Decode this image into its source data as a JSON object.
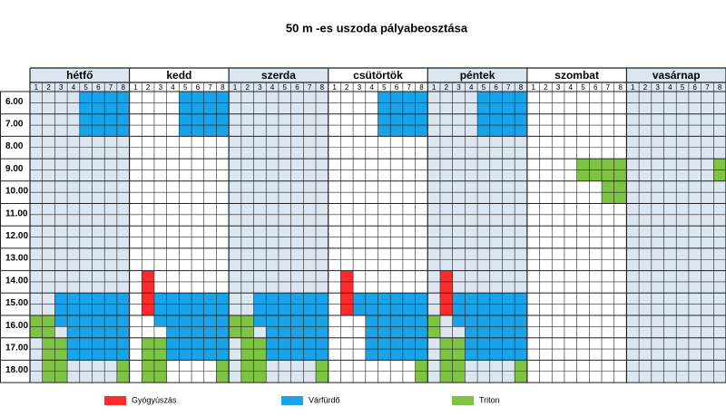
{
  "title": "50 m -es uszoda pályabeosztása",
  "days": [
    "hétfő",
    "kedd",
    "szerda",
    "csütörtök",
    "péntek",
    "szombat",
    "vasárnap"
  ],
  "lanes": [
    "1",
    "2",
    "3",
    "4",
    "5",
    "6",
    "7",
    "8"
  ],
  "times": [
    "6.00",
    "7.00",
    "8.00",
    "9.00",
    "10.00",
    "11.00",
    "12.00",
    "13.00",
    "14.00",
    "15.00",
    "16.00",
    "17.00",
    "18.00"
  ],
  "legend": [
    {
      "label": "Gyógyúszás",
      "color": "#ff2b2b"
    },
    {
      "label": "Várfürdő",
      "color": "#19a4ea"
    },
    {
      "label": "Triton",
      "color": "#7ec344"
    }
  ],
  "bookings": [
    {
      "day": 0,
      "lanes": [
        5,
        8
      ],
      "hours": [
        6,
        8
      ],
      "kind": 1
    },
    {
      "day": 0,
      "lanes": [
        3,
        8
      ],
      "hours": [
        15,
        16.5
      ],
      "kind": 1
    },
    {
      "day": 0,
      "lanes": [
        4,
        8
      ],
      "hours": [
        16.5,
        18
      ],
      "kind": 1
    },
    {
      "day": 0,
      "lanes": [
        1,
        2
      ],
      "hours": [
        16,
        17
      ],
      "kind": 2
    },
    {
      "day": 0,
      "lanes": [
        2,
        3
      ],
      "hours": [
        17,
        19
      ],
      "kind": 2
    },
    {
      "day": 0,
      "lanes": [
        8,
        8
      ],
      "hours": [
        18,
        19
      ],
      "kind": 2
    },
    {
      "day": 1,
      "lanes": [
        5,
        8
      ],
      "hours": [
        6,
        8
      ],
      "kind": 1
    },
    {
      "day": 1,
      "lanes": [
        2,
        2
      ],
      "hours": [
        14,
        16
      ],
      "kind": 0
    },
    {
      "day": 1,
      "lanes": [
        3,
        8
      ],
      "hours": [
        15,
        16.5
      ],
      "kind": 1
    },
    {
      "day": 1,
      "lanes": [
        4,
        8
      ],
      "hours": [
        16.5,
        18
      ],
      "kind": 1
    },
    {
      "day": 1,
      "lanes": [
        2,
        3
      ],
      "hours": [
        17,
        19
      ],
      "kind": 2
    },
    {
      "day": 1,
      "lanes": [
        8,
        8
      ],
      "hours": [
        18,
        19
      ],
      "kind": 2
    },
    {
      "day": 2,
      "lanes": [
        3,
        8
      ],
      "hours": [
        15,
        16.5
      ],
      "kind": 1
    },
    {
      "day": 2,
      "lanes": [
        4,
        8
      ],
      "hours": [
        16.5,
        18
      ],
      "kind": 1
    },
    {
      "day": 2,
      "lanes": [
        1,
        2
      ],
      "hours": [
        16,
        17
      ],
      "kind": 2
    },
    {
      "day": 2,
      "lanes": [
        2,
        3
      ],
      "hours": [
        17,
        19
      ],
      "kind": 2
    },
    {
      "day": 2,
      "lanes": [
        8,
        8
      ],
      "hours": [
        18,
        19
      ],
      "kind": 2
    },
    {
      "day": 3,
      "lanes": [
        5,
        8
      ],
      "hours": [
        6,
        8
      ],
      "kind": 1
    },
    {
      "day": 3,
      "lanes": [
        2,
        2
      ],
      "hours": [
        14,
        16
      ],
      "kind": 0
    },
    {
      "day": 3,
      "lanes": [
        3,
        8
      ],
      "hours": [
        15,
        16
      ],
      "kind": 1
    },
    {
      "day": 3,
      "lanes": [
        4,
        8
      ],
      "hours": [
        16,
        18
      ],
      "kind": 1
    },
    {
      "day": 3,
      "lanes": [
        8,
        8
      ],
      "hours": [
        18,
        19
      ],
      "kind": 2
    },
    {
      "day": 4,
      "lanes": [
        5,
        8
      ],
      "hours": [
        6,
        8
      ],
      "kind": 1
    },
    {
      "day": 4,
      "lanes": [
        2,
        2
      ],
      "hours": [
        14,
        16
      ],
      "kind": 0
    },
    {
      "day": 4,
      "lanes": [
        3,
        8
      ],
      "hours": [
        15,
        16.5
      ],
      "kind": 1
    },
    {
      "day": 4,
      "lanes": [
        4,
        8
      ],
      "hours": [
        16.5,
        18
      ],
      "kind": 1
    },
    {
      "day": 4,
      "lanes": [
        1,
        1
      ],
      "hours": [
        16,
        17
      ],
      "kind": 2
    },
    {
      "day": 4,
      "lanes": [
        2,
        3
      ],
      "hours": [
        17,
        19
      ],
      "kind": 2
    },
    {
      "day": 4,
      "lanes": [
        8,
        8
      ],
      "hours": [
        18,
        19
      ],
      "kind": 2
    },
    {
      "day": 5,
      "lanes": [
        5,
        8
      ],
      "hours": [
        9,
        10
      ],
      "kind": 2
    },
    {
      "day": 5,
      "lanes": [
        7,
        8
      ],
      "hours": [
        10,
        11
      ],
      "kind": 2
    },
    {
      "day": 6,
      "lanes": [
        8,
        8
      ],
      "hours": [
        9,
        10
      ],
      "kind": 2
    }
  ]
}
